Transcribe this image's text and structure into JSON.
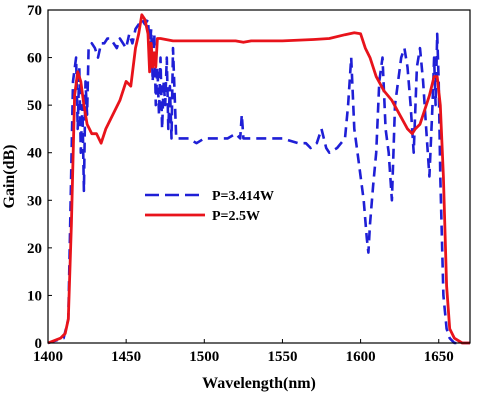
{
  "chart_data": {
    "type": "line",
    "title": "",
    "xlabel": "Wavelength(nm)",
    "ylabel": "Gain(dB)",
    "xlim": [
      1400,
      1670
    ],
    "ylim": [
      0,
      70
    ],
    "xticks": [
      1400,
      1450,
      1500,
      1550,
      1600,
      1650
    ],
    "yticks": [
      0,
      10,
      20,
      30,
      40,
      50,
      60,
      70
    ],
    "grid": false,
    "legend_position": "center-left",
    "series": [
      {
        "name": "P=3.414W",
        "color": "#1f1fd6",
        "style": "dashed",
        "x": [
          1400,
          1410,
          1413,
          1416,
          1418,
          1419,
          1420,
          1421,
          1422,
          1423,
          1424,
          1425,
          1426,
          1428,
          1430,
          1432,
          1434,
          1436,
          1438,
          1440,
          1444,
          1446,
          1448,
          1450,
          1452,
          1454,
          1456,
          1458,
          1460,
          1462,
          1464,
          1465,
          1466,
          1467,
          1468,
          1469,
          1470,
          1471,
          1472,
          1473,
          1474,
          1475,
          1476,
          1477,
          1478,
          1479,
          1480,
          1482,
          1485,
          1490,
          1495,
          1500,
          1505,
          1510,
          1515,
          1520,
          1523,
          1524,
          1525,
          1530,
          1540,
          1550,
          1560,
          1565,
          1568,
          1572,
          1575,
          1578,
          1580,
          1585,
          1590,
          1592,
          1594,
          1596,
          1598,
          1600,
          1602,
          1604,
          1605,
          1606,
          1608,
          1610,
          1612,
          1614,
          1616,
          1618,
          1620,
          1622,
          1624,
          1626,
          1628,
          1630,
          1632,
          1634,
          1636,
          1638,
          1640,
          1642,
          1644,
          1646,
          1647,
          1648,
          1649,
          1650,
          1651,
          1653,
          1655,
          1657,
          1660,
          1665,
          1670
        ],
        "y": [
          0,
          1,
          5,
          55,
          60,
          45,
          58,
          40,
          50,
          32,
          55,
          48,
          62,
          63,
          62,
          60,
          63,
          63,
          64,
          64,
          62,
          64,
          63,
          62,
          65,
          63,
          66,
          67,
          68,
          67,
          68,
          62,
          66,
          55,
          65,
          50,
          58,
          48,
          60,
          45,
          55,
          50,
          60,
          45,
          54,
          43,
          62,
          43,
          43,
          43,
          42,
          43,
          43,
          43,
          43,
          44,
          43,
          48,
          43,
          43,
          43,
          43,
          42,
          42,
          41,
          42,
          45,
          41,
          40,
          41,
          43,
          50,
          60,
          45,
          40,
          35,
          30,
          22,
          19,
          25,
          33,
          40,
          55,
          60,
          45,
          40,
          30,
          50,
          55,
          60,
          62,
          58,
          50,
          40,
          58,
          62,
          55,
          45,
          35,
          50,
          60,
          50,
          65,
          55,
          35,
          10,
          3,
          1,
          0,
          0,
          0
        ]
      },
      {
        "name": "P=2.5W",
        "color": "#e8131b",
        "style": "solid",
        "x": [
          1400,
          1408,
          1411,
          1413,
          1415,
          1417,
          1419,
          1421,
          1423,
          1425,
          1428,
          1431,
          1434,
          1437,
          1440,
          1443,
          1446,
          1450,
          1453,
          1456,
          1458,
          1460,
          1462,
          1464,
          1465,
          1466,
          1467,
          1468,
          1469,
          1470,
          1472,
          1480,
          1500,
          1520,
          1525,
          1530,
          1550,
          1570,
          1580,
          1590,
          1596,
          1600,
          1603,
          1606,
          1610,
          1615,
          1620,
          1625,
          1630,
          1633,
          1635,
          1638,
          1641,
          1644,
          1647,
          1649,
          1651,
          1653,
          1655,
          1657,
          1660,
          1665,
          1670
        ],
        "y": [
          0,
          1,
          2,
          5,
          25,
          52,
          57,
          55,
          50,
          46,
          44,
          44,
          42,
          45,
          47,
          49,
          51,
          55,
          54,
          62,
          65,
          69,
          68,
          65,
          57,
          63,
          58,
          61,
          58,
          64,
          64,
          63.5,
          63.5,
          63.5,
          63.2,
          63.5,
          63.5,
          63.8,
          64,
          64.8,
          65.2,
          65,
          62,
          60,
          56,
          53,
          51,
          48,
          45,
          44,
          45,
          46,
          49,
          52,
          56,
          56,
          50,
          35,
          12,
          3,
          1,
          0,
          0
        ]
      }
    ]
  }
}
